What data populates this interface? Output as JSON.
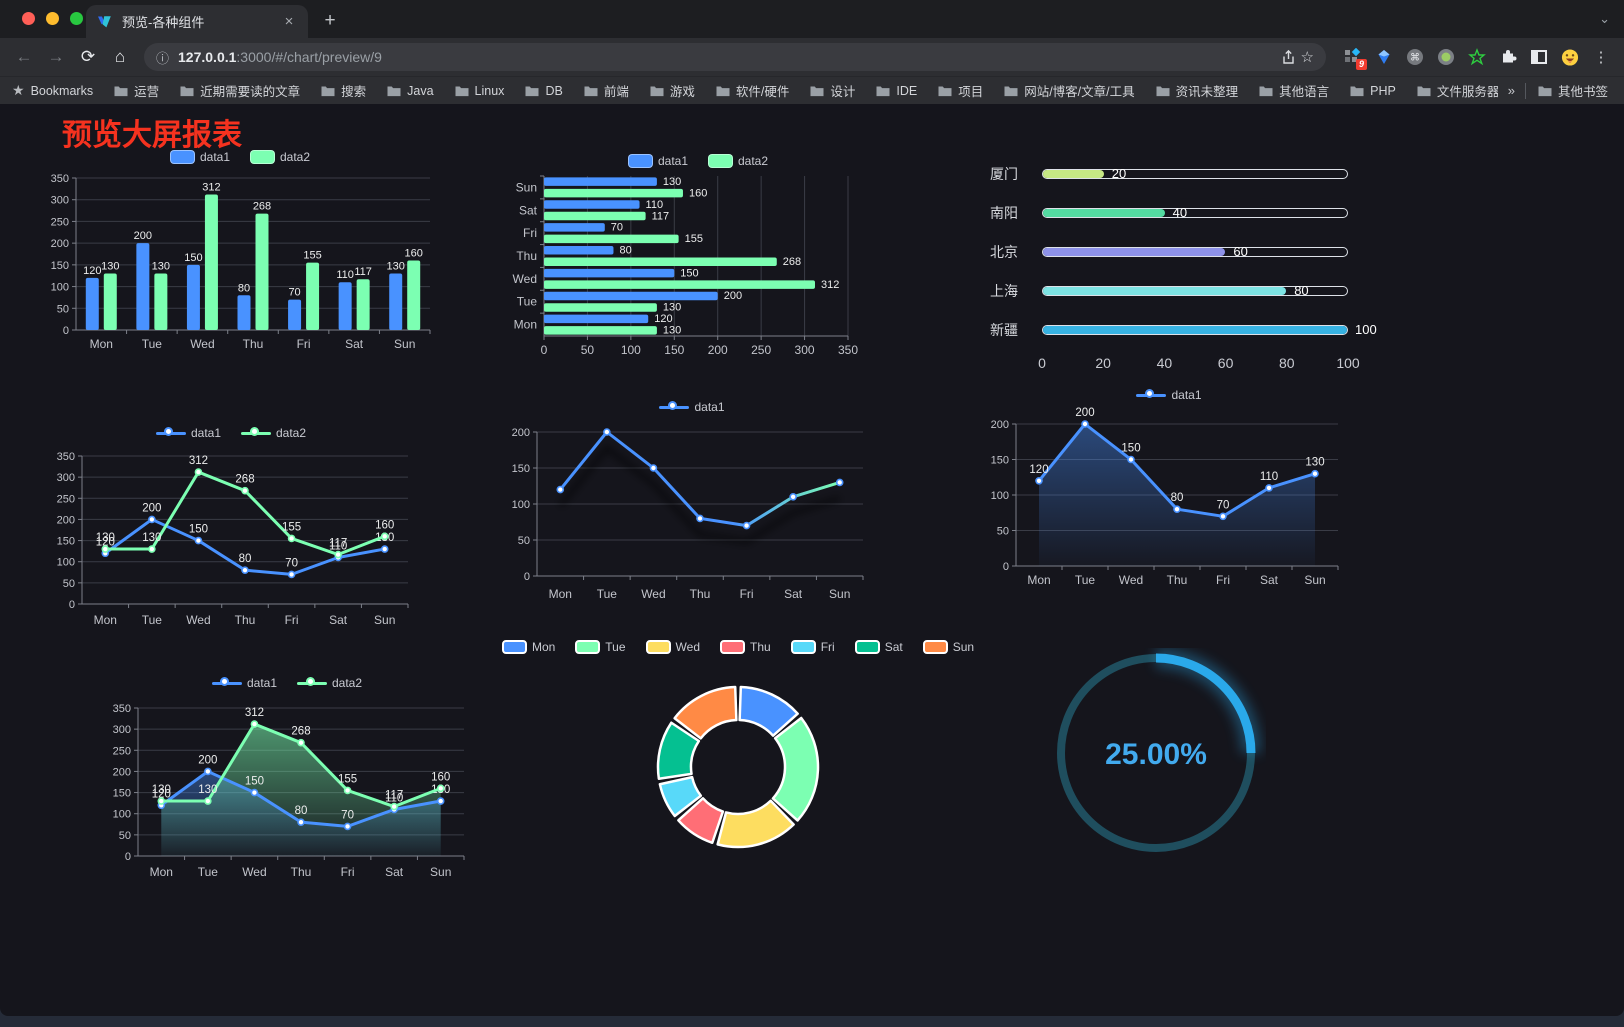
{
  "browser": {
    "tab": {
      "title": "预览-各种组件",
      "close_glyph": "×",
      "new_tab_glyph": "+"
    },
    "url": {
      "host": "127.0.0.1",
      "rest": ":3000/#/chart/preview/9"
    },
    "bookmarks_bar": {
      "bookmarks_label": "Bookmarks",
      "folders": [
        "运营",
        "近期需要读的文章",
        "搜索",
        "Java",
        "Linux",
        "DB",
        "前端",
        "游戏",
        "软件/硬件",
        "设计",
        "IDE",
        "项目",
        "网站/博客/文章/工具",
        "资讯未整理",
        "其他语言",
        "PHP",
        "文件服务器"
      ],
      "overflow_chevron": "»",
      "other_bookmarks": "其他书签"
    },
    "extensions_badge": "9"
  },
  "page": {
    "title": "预览大屏报表"
  },
  "colors": {
    "data1": "#4992ff",
    "data2": "#7cffb2",
    "axis_text": "#c3c5cc",
    "grid": "#3a3c46",
    "axis_line": "#7d808a",
    "value_label": "#eceded",
    "title_red": "#f5321f"
  },
  "chart_data": [
    {
      "id": "bar-grouped",
      "type": "bar",
      "legend_position": "top",
      "categories": [
        "Mon",
        "Tue",
        "Wed",
        "Thu",
        "Fri",
        "Sat",
        "Sun"
      ],
      "series": [
        {
          "name": "data1",
          "color": "#4992ff",
          "values": [
            120,
            200,
            150,
            80,
            70,
            110,
            130
          ]
        },
        {
          "name": "data2",
          "color": "#7cffb2",
          "values": [
            130,
            130,
            312,
            268,
            155,
            117,
            160
          ]
        }
      ],
      "ylim": [
        0,
        350
      ],
      "yticks": [
        0,
        50,
        100,
        150,
        200,
        250,
        300,
        350
      ],
      "grid": true
    },
    {
      "id": "bar-horizontal",
      "type": "bar",
      "orientation": "horizontal",
      "legend_position": "top",
      "categories": [
        "Mon",
        "Tue",
        "Wed",
        "Thu",
        "Fri",
        "Sat",
        "Sun"
      ],
      "series": [
        {
          "name": "data1",
          "color": "#4992ff",
          "values": [
            120,
            200,
            150,
            80,
            70,
            110,
            130
          ]
        },
        {
          "name": "data2",
          "color": "#7cffb2",
          "values": [
            130,
            130,
            312,
            268,
            155,
            117,
            160
          ]
        }
      ],
      "xlim": [
        0,
        350
      ],
      "xticks": [
        0,
        50,
        100,
        150,
        200,
        250,
        300,
        350
      ],
      "grid": true
    },
    {
      "id": "progress-bars",
      "type": "bar",
      "orientation": "horizontal-progress",
      "items": [
        {
          "label": "厦门",
          "value": 20,
          "color": "#c6e884"
        },
        {
          "label": "南阳",
          "value": 40,
          "color": "#54dba2"
        },
        {
          "label": "北京",
          "value": 60,
          "color": "#8e92e9"
        },
        {
          "label": "上海",
          "value": 80,
          "color": "#7de3e3"
        },
        {
          "label": "新疆",
          "value": 100,
          "color": "#37b2e2"
        }
      ],
      "xlim": [
        0,
        100
      ],
      "xticks": [
        0,
        20,
        40,
        60,
        80,
        100
      ]
    },
    {
      "id": "line-dual",
      "type": "line",
      "legend_position": "top",
      "categories": [
        "Mon",
        "Tue",
        "Wed",
        "Thu",
        "Fri",
        "Sat",
        "Sun"
      ],
      "series": [
        {
          "name": "data1",
          "color": "#4992ff",
          "values": [
            120,
            200,
            150,
            80,
            70,
            110,
            130
          ]
        },
        {
          "name": "data2",
          "color": "#7cffb2",
          "values": [
            130,
            130,
            312,
            268,
            155,
            117,
            160
          ]
        }
      ],
      "ylim": [
        0,
        350
      ],
      "yticks": [
        0,
        50,
        100,
        150,
        200,
        250,
        300,
        350
      ],
      "grid": true
    },
    {
      "id": "line-gradient",
      "type": "line",
      "legend_position": "top",
      "categories": [
        "Mon",
        "Tue",
        "Wed",
        "Thu",
        "Fri",
        "Sat",
        "Sun"
      ],
      "series": [
        {
          "name": "data1",
          "color": "#4992ff",
          "color_end": "#7cffb2",
          "values": [
            120,
            200,
            150,
            80,
            70,
            110,
            130
          ]
        }
      ],
      "ylim": [
        0,
        200
      ],
      "yticks": [
        0,
        50,
        100,
        150,
        200
      ],
      "grid": true
    },
    {
      "id": "line-area",
      "type": "area",
      "legend_position": "top",
      "categories": [
        "Mon",
        "Tue",
        "Wed",
        "Thu",
        "Fri",
        "Sat",
        "Sun"
      ],
      "series": [
        {
          "name": "data1",
          "color": "#4992ff",
          "values": [
            120,
            200,
            150,
            80,
            70,
            110,
            130
          ]
        }
      ],
      "ylim": [
        0,
        200
      ],
      "yticks": [
        0,
        50,
        100,
        150,
        200
      ],
      "grid": true
    },
    {
      "id": "line-dual-area",
      "type": "area",
      "legend_position": "top",
      "categories": [
        "Mon",
        "Tue",
        "Wed",
        "Thu",
        "Fri",
        "Sat",
        "Sun"
      ],
      "series": [
        {
          "name": "data1",
          "color": "#4992ff",
          "values": [
            120,
            200,
            150,
            80,
            70,
            110,
            130
          ]
        },
        {
          "name": "data2",
          "color": "#7cffb2",
          "values": [
            130,
            130,
            312,
            268,
            155,
            117,
            160
          ]
        }
      ],
      "ylim": [
        0,
        350
      ],
      "yticks": [
        0,
        50,
        100,
        150,
        200,
        250,
        300,
        350
      ],
      "grid": true
    },
    {
      "id": "donut",
      "type": "pie",
      "legend_position": "top",
      "labels": [
        "Mon",
        "Tue",
        "Wed",
        "Thu",
        "Fri",
        "Sat",
        "Sun"
      ],
      "values": [
        120,
        200,
        150,
        80,
        70,
        110,
        130
      ],
      "colors": [
        "#4992ff",
        "#7cffb2",
        "#fddd60",
        "#ff6e76",
        "#58d9f9",
        "#05c091",
        "#ff8a45"
      ]
    },
    {
      "id": "gauge",
      "type": "gauge",
      "value": 25,
      "display": "25.00%",
      "color": "#2aa9ea",
      "track_color": "#1f4e5e",
      "text_color": "#42aaee"
    }
  ]
}
